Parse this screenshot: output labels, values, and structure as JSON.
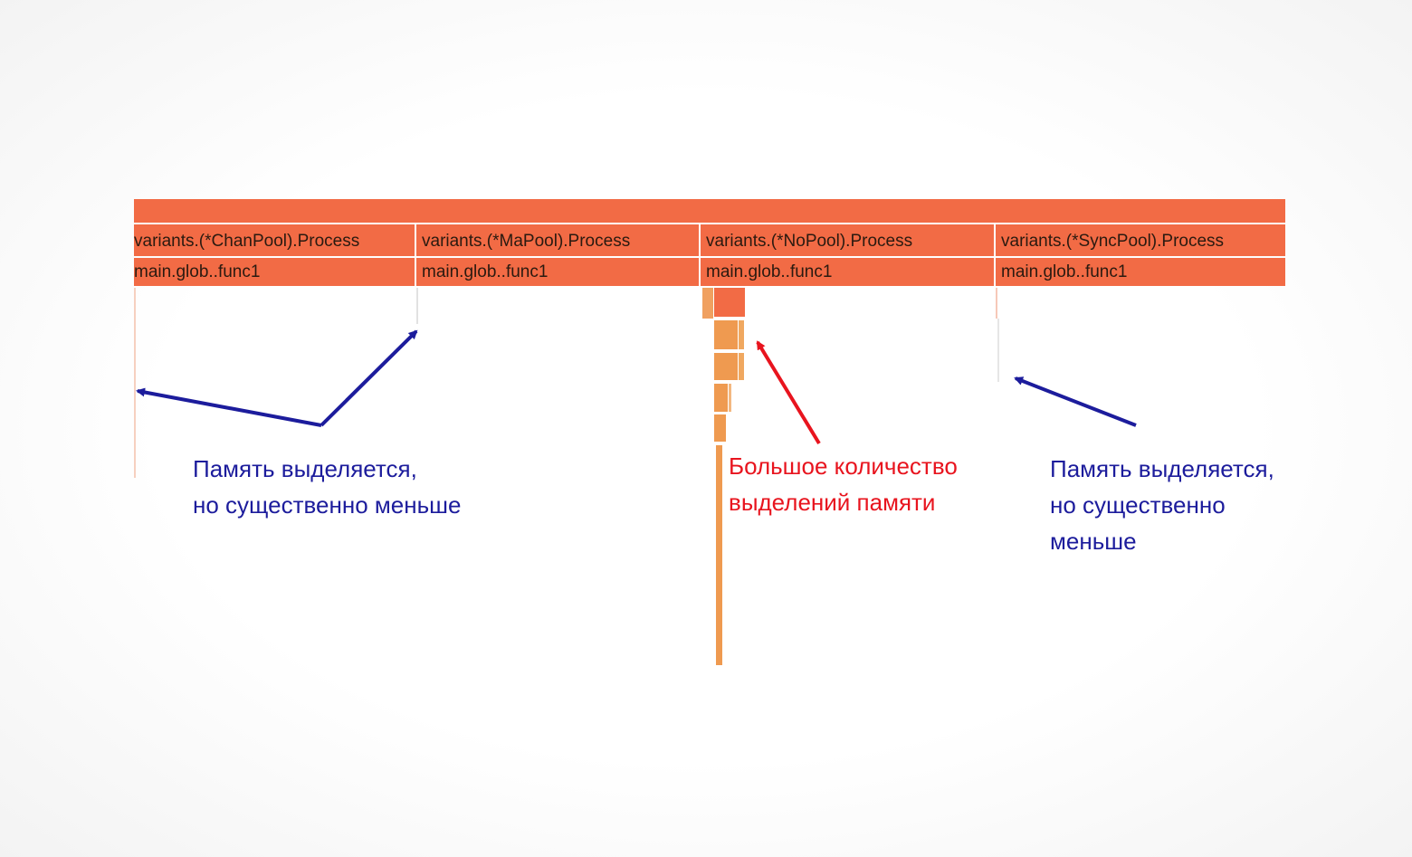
{
  "columns": [
    {
      "process": "variants.(*ChanPool).Process",
      "caller": "main.glob..func1"
    },
    {
      "process": "variants.(*MaPool).Process",
      "caller": "main.glob..func1"
    },
    {
      "process": "variants.(*NoPool).Process",
      "caller": "main.glob..func1"
    },
    {
      "process": "variants.(*SyncPool).Process",
      "caller": "main.glob..func1"
    }
  ],
  "annotations": [
    {
      "lines": [
        "Память выделяется,",
        "но существенно меньше"
      ]
    },
    {
      "lines": [
        "Большое количество",
        "выделений памяти"
      ]
    },
    {
      "lines": [
        "Память выделяется,",
        "но существенно",
        "меньше"
      ]
    }
  ]
}
